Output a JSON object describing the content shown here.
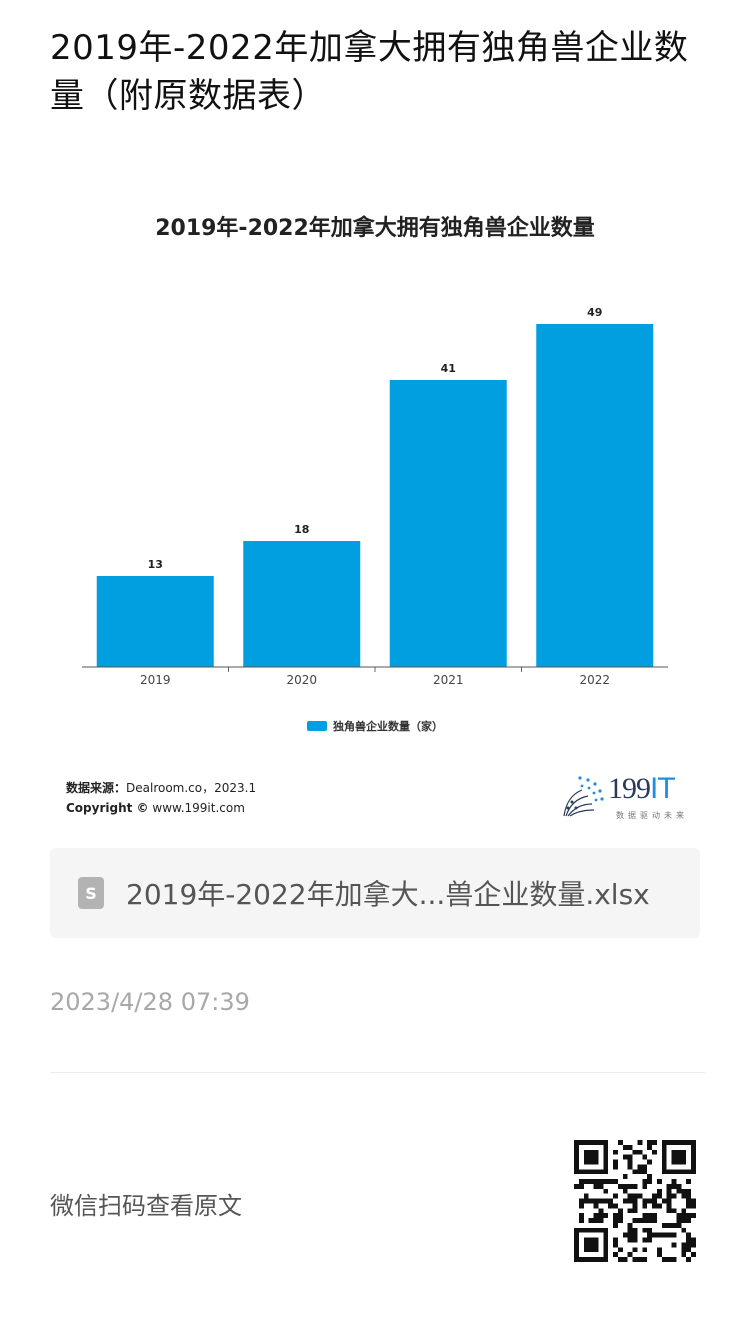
{
  "article": {
    "title": "2019年-2022年加拿大拥有独角兽企业数量（附原数据表）"
  },
  "chart_data": {
    "type": "bar",
    "title": "2019年-2022年加拿大拥有独角兽企业数量",
    "categories": [
      "2019",
      "2020",
      "2021",
      "2022"
    ],
    "series": [
      {
        "name": "独角兽企业数量（家）",
        "values": [
          13,
          18,
          41,
          49
        ],
        "color": "#019fe0"
      }
    ],
    "ylim": [
      0,
      50
    ],
    "grid": false,
    "legend": "bottom-center",
    "data_labels": true
  },
  "source": {
    "label": "数据来源：",
    "value": "Dealroom.co，2023.1",
    "copyright_label": "Copyright ©",
    "copyright_value": "www.199it.com"
  },
  "logo": {
    "number": "199",
    "letters": "IT",
    "tagline": "数据驱动未来"
  },
  "attachment": {
    "icon": "spreadsheet-file-icon",
    "icon_letter": "S",
    "name": "2019年-2022年加拿大...兽企业数量.xlsx"
  },
  "timestamp": "2023/4/28 07:39",
  "footer": {
    "wechat_label": "微信扫码查看原文"
  }
}
